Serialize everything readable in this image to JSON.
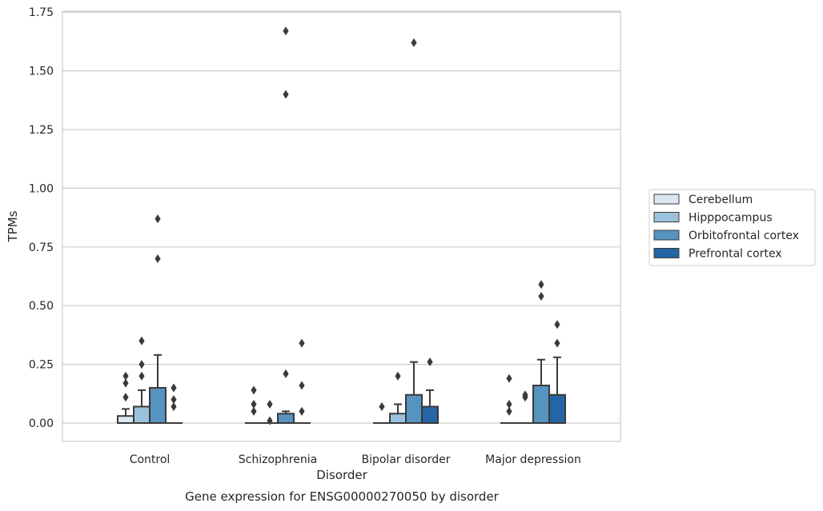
{
  "chart_data": {
    "type": "box",
    "title": "",
    "caption": "Gene expression for ENSG00000270050 by disorder",
    "xlabel": "Disorder",
    "ylabel": "TPMs",
    "ylim": [
      -0.08,
      1.75
    ],
    "yticks": [
      "0.00",
      "0.25",
      "0.50",
      "0.75",
      "1.00",
      "1.25",
      "1.50",
      "1.75"
    ],
    "ytick_values": [
      0,
      0.25,
      0.5,
      0.75,
      1.0,
      1.25,
      1.5,
      1.75
    ],
    "grid": "horizontal",
    "legend_position": "right",
    "categories": [
      "Control",
      "Schizophrenia",
      "Bipolar disorder",
      "Major depression"
    ],
    "series": [
      {
        "name": "Cerebellum",
        "color": "#dbe6f3",
        "boxes": [
          {
            "q1": 0,
            "median": 0,
            "q3": 0.03,
            "whisker_low": 0,
            "whisker_high": 0.06,
            "outliers": [
              0.11,
              0.17,
              0.2
            ]
          },
          {
            "q1": 0,
            "median": 0,
            "q3": 0,
            "whisker_low": 0,
            "whisker_high": 0,
            "outliers": [
              0.05,
              0.08,
              0.14
            ]
          },
          {
            "q1": 0,
            "median": 0,
            "q3": 0,
            "whisker_low": 0,
            "whisker_high": 0,
            "outliers": [
              0.07
            ]
          },
          {
            "q1": 0,
            "median": 0,
            "q3": 0,
            "whisker_low": 0,
            "whisker_high": 0,
            "outliers": [
              0.05,
              0.08,
              0.19
            ]
          }
        ]
      },
      {
        "name": "Hipppocampus",
        "color": "#9ac2dc",
        "boxes": [
          {
            "q1": 0,
            "median": 0,
            "q3": 0.07,
            "whisker_low": 0,
            "whisker_high": 0.14,
            "outliers": [
              0.2,
              0.25,
              0.35
            ]
          },
          {
            "q1": 0,
            "median": 0,
            "q3": 0,
            "whisker_low": 0,
            "whisker_high": 0,
            "outliers": [
              0.01,
              0.08
            ]
          },
          {
            "q1": 0,
            "median": 0,
            "q3": 0.04,
            "whisker_low": 0,
            "whisker_high": 0.08,
            "outliers": [
              0.2
            ]
          },
          {
            "q1": 0,
            "median": 0,
            "q3": 0,
            "whisker_low": 0,
            "whisker_high": 0,
            "outliers": [
              0.11,
              0.12
            ]
          }
        ]
      },
      {
        "name": "Orbitofrontal cortex",
        "color": "#5593c0",
        "boxes": [
          {
            "q1": 0,
            "median": 0,
            "q3": 0.15,
            "whisker_low": 0,
            "whisker_high": 0.29,
            "outliers": [
              0.7,
              0.87
            ]
          },
          {
            "q1": 0,
            "median": 0,
            "q3": 0.04,
            "whisker_low": 0,
            "whisker_high": 0.05,
            "outliers": [
              0.21,
              1.4,
              1.67
            ]
          },
          {
            "q1": 0,
            "median": 0,
            "q3": 0.12,
            "whisker_low": 0,
            "whisker_high": 0.26,
            "outliers": [
              1.62
            ]
          },
          {
            "q1": 0,
            "median": 0,
            "q3": 0.16,
            "whisker_low": 0,
            "whisker_high": 0.27,
            "outliers": [
              0.54,
              0.59
            ]
          }
        ]
      },
      {
        "name": "Prefrontal cortex",
        "color": "#2365a5",
        "boxes": [
          {
            "q1": 0,
            "median": 0,
            "q3": 0,
            "whisker_low": 0,
            "whisker_high": 0,
            "outliers": [
              0.07,
              0.1,
              0.15
            ]
          },
          {
            "q1": 0,
            "median": 0,
            "q3": 0,
            "whisker_low": 0,
            "whisker_high": 0,
            "outliers": [
              0.05,
              0.16,
              0.34
            ]
          },
          {
            "q1": 0,
            "median": 0,
            "q3": 0.07,
            "whisker_low": 0,
            "whisker_high": 0.14,
            "outliers": [
              0.26
            ]
          },
          {
            "q1": 0,
            "median": 0,
            "q3": 0.12,
            "whisker_low": 0,
            "whisker_high": 0.28,
            "outliers": [
              0.34,
              0.42
            ]
          }
        ]
      }
    ],
    "colors": {
      "edge": "#3a3a3a",
      "grid": "#cccccc",
      "frame": "#cccccc"
    }
  }
}
